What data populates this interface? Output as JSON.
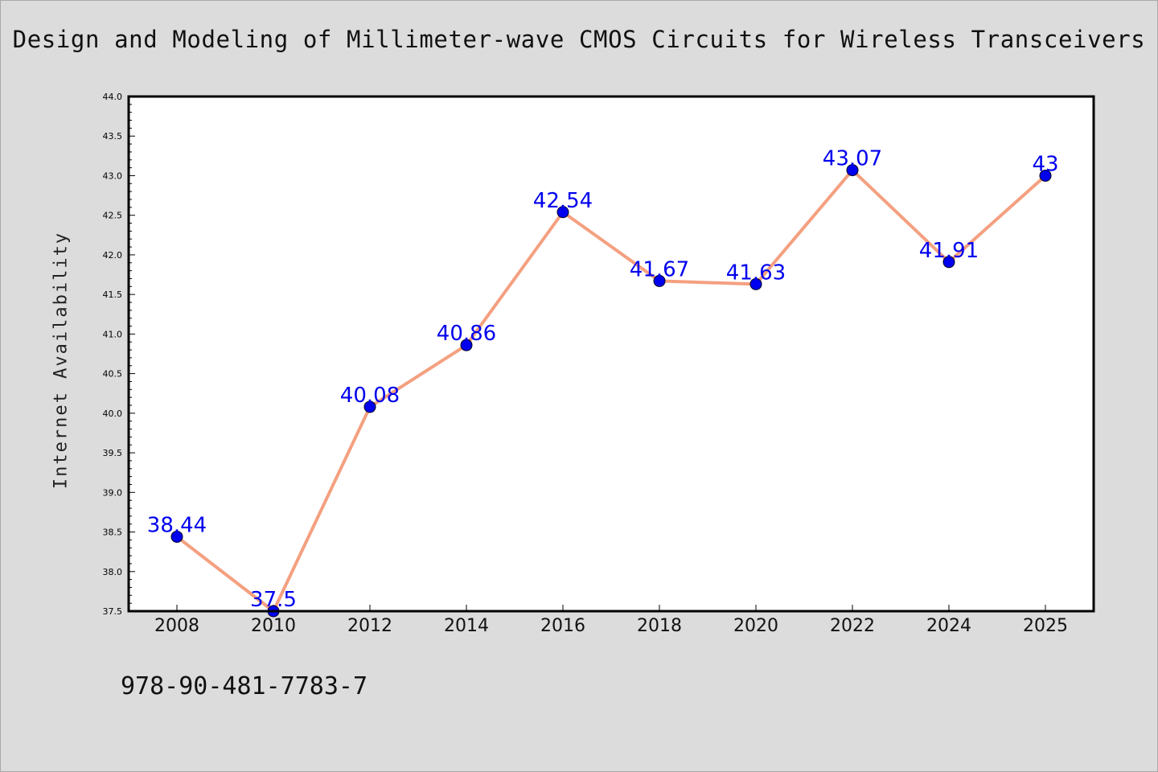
{
  "footer": {
    "isbn": "978-90-481-7783-7"
  },
  "colors": {
    "background": "#dcdcdc",
    "plot_background": "#ffffff",
    "line": "#f4a080",
    "marker": "#0000ee",
    "label": "#0000ee"
  },
  "chart_data": {
    "type": "line",
    "title": "Design and Modeling of Millimeter-wave CMOS Circuits for Wireless Transceivers",
    "xlabel": "",
    "ylabel": "Internet Availability",
    "categories": [
      "2008",
      "2010",
      "2012",
      "2014",
      "2016",
      "2018",
      "2020",
      "2022",
      "2024",
      "2025"
    ],
    "series": [
      {
        "values": [
          38.44,
          37.5,
          40.08,
          40.86,
          42.54,
          41.67,
          41.63,
          43.07,
          41.91,
          43.0
        ],
        "labels": [
          "38.44",
          "37.5",
          "40.08",
          "40.86",
          "42.54",
          "41.67",
          "41.63",
          "43.07",
          "41.91",
          "43"
        ]
      }
    ],
    "ylim": [
      37.5,
      44.0
    ],
    "yticks": [
      "37.5",
      "38.0",
      "38.5",
      "39.0",
      "39.5",
      "40.0",
      "40.5",
      "41.0",
      "41.5",
      "42.0",
      "42.5",
      "43.0",
      "43.5",
      "44.0"
    ],
    "grid": false,
    "legend": "none"
  }
}
